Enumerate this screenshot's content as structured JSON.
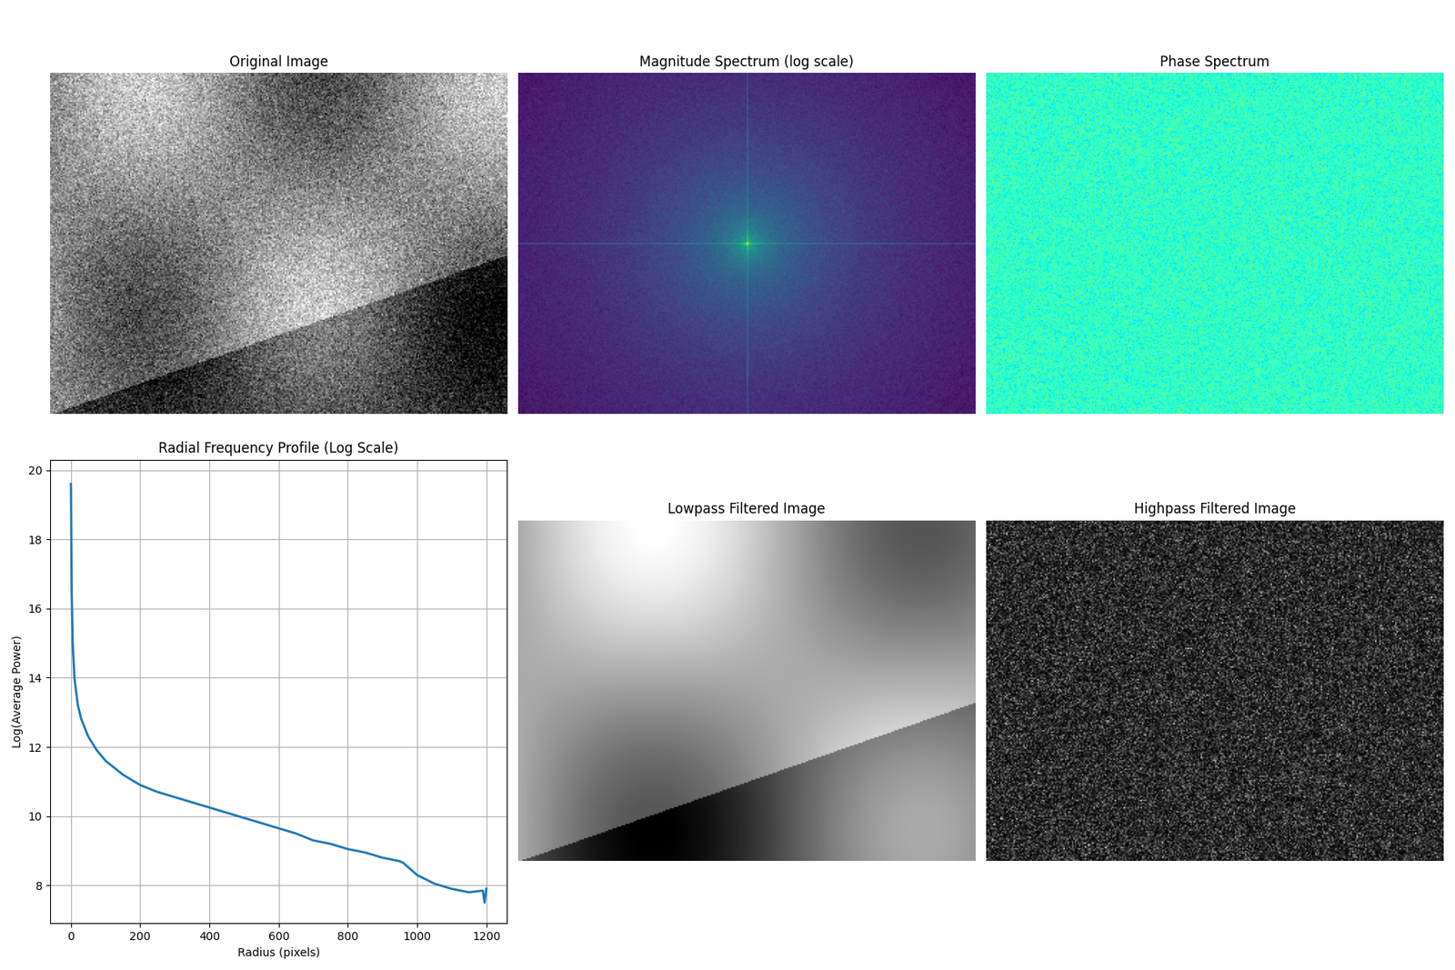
{
  "chart_data": [
    {
      "type": "image",
      "title": "Original Image",
      "tick_labels": false
    },
    {
      "type": "image",
      "title": "Magnitude Spectrum (log scale)",
      "tick_labels": false
    },
    {
      "type": "image",
      "title": "Phase Spectrum",
      "tick_labels": false
    },
    {
      "type": "line",
      "title": "Radial Frequency Profile (Log Scale)",
      "x_label": "Radius (pixels)",
      "y_label": "Log(Average Power)",
      "x": [
        0,
        2,
        5,
        10,
        20,
        30,
        50,
        75,
        100,
        150,
        200,
        250,
        300,
        350,
        400,
        450,
        500,
        550,
        600,
        650,
        700,
        750,
        800,
        850,
        900,
        950,
        960,
        1000,
        1050,
        1100,
        1150,
        1190,
        1195,
        1200
      ],
      "values": [
        19.6,
        16.5,
        15.0,
        14.0,
        13.2,
        12.8,
        12.3,
        11.9,
        11.6,
        11.2,
        10.9,
        10.7,
        10.55,
        10.4,
        10.25,
        10.1,
        9.95,
        9.8,
        9.65,
        9.5,
        9.3,
        9.2,
        9.05,
        8.95,
        8.8,
        8.7,
        8.65,
        8.3,
        8.05,
        7.9,
        7.8,
        7.85,
        7.5,
        7.9
      ],
      "color": "#1f77b4",
      "xlim": [
        -60,
        1260
      ],
      "ylim": [
        6.9,
        20.3
      ],
      "xticks": [
        0,
        200,
        400,
        600,
        800,
        1000,
        1200
      ],
      "yticks": [
        8,
        10,
        12,
        14,
        16,
        18,
        20
      ],
      "grid": true
    },
    {
      "type": "image",
      "title": "Lowpass Filtered Image",
      "tick_labels": false
    },
    {
      "type": "image",
      "title": "Highpass Filtered Image",
      "tick_labels": false
    }
  ]
}
